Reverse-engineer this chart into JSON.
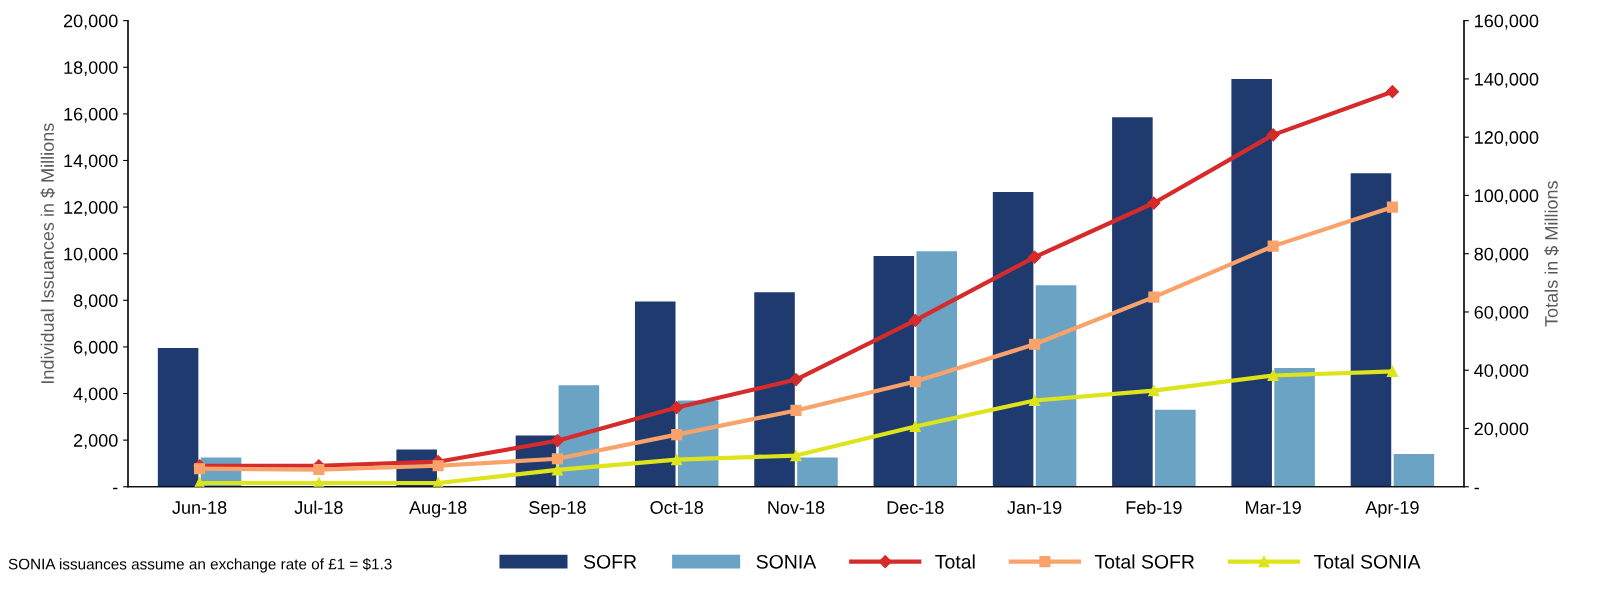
{
  "chart_data": {
    "type": "bar",
    "ylabel": "Individual Issuances in $ Millions",
    "y2label": "Totals in $ Millions",
    "categories": [
      "Jun-18",
      "Jul-18",
      "Aug-18",
      "Sep-18",
      "Oct-18",
      "Nov-18",
      "Dec-18",
      "Jan-19",
      "Feb-19",
      "Mar-19",
      "Apr-19"
    ],
    "series": [
      {
        "name": "SOFR",
        "color": "#1f3a6e",
        "values": [
          5950,
          0,
          1600,
          2200,
          7950,
          8350,
          9900,
          12650,
          15850,
          17500,
          13450
        ]
      },
      {
        "name": "SONIA",
        "color": "#6aa3c4",
        "values": [
          1250,
          0,
          0,
          4350,
          3700,
          1250,
          10100,
          8650,
          3300,
          5100,
          1400
        ]
      },
      {
        "name": "Total",
        "type": "line",
        "axis": "y2",
        "marker": "diamond",
        "color": "#d62b2b",
        "values": [
          7200,
          7200,
          8600,
          15800,
          27200,
          36800,
          57100,
          78800,
          97400,
          120800,
          135600
        ]
      },
      {
        "name": "Total SOFR",
        "type": "line",
        "axis": "y2",
        "marker": "square",
        "color": "#f9a26a",
        "values": [
          6200,
          5900,
          7200,
          9600,
          17900,
          26200,
          36100,
          48900,
          65100,
          82600,
          96000
        ]
      },
      {
        "name": "Total SONIA",
        "type": "line",
        "axis": "y2",
        "marker": "triangle",
        "color": "#dde41a",
        "values": [
          1300,
          1300,
          1300,
          5800,
          9300,
          10700,
          20700,
          29600,
          33000,
          38200,
          39600
        ]
      }
    ],
    "ylim": [
      0,
      20000
    ],
    "yticks": [
      {
        "value": 0,
        "label": "-"
      },
      {
        "value": 2000,
        "label": "2,000"
      },
      {
        "value": 4000,
        "label": "4,000"
      },
      {
        "value": 6000,
        "label": "6,000"
      },
      {
        "value": 8000,
        "label": "8,000"
      },
      {
        "value": 10000,
        "label": "10,000"
      },
      {
        "value": 12000,
        "label": "12,000"
      },
      {
        "value": 14000,
        "label": "14,000"
      },
      {
        "value": 16000,
        "label": "16,000"
      },
      {
        "value": 18000,
        "label": "18,000"
      },
      {
        "value": 20000,
        "label": "20,000"
      }
    ],
    "y2lim": [
      0,
      160000
    ],
    "y2ticks": [
      {
        "value": 0,
        "label": "-"
      },
      {
        "value": 20000,
        "label": "20,000"
      },
      {
        "value": 40000,
        "label": "40,000"
      },
      {
        "value": 60000,
        "label": "60,000"
      },
      {
        "value": 80000,
        "label": "80,000"
      },
      {
        "value": 100000,
        "label": "100,000"
      },
      {
        "value": 120000,
        "label": "120,000"
      },
      {
        "value": 140000,
        "label": "140,000"
      },
      {
        "value": 160000,
        "label": "160,000"
      }
    ],
    "grid": false,
    "legend": "bottom",
    "annotations": [
      "SONIA issuances assume an exchange rate of £1 = $1.3"
    ]
  }
}
